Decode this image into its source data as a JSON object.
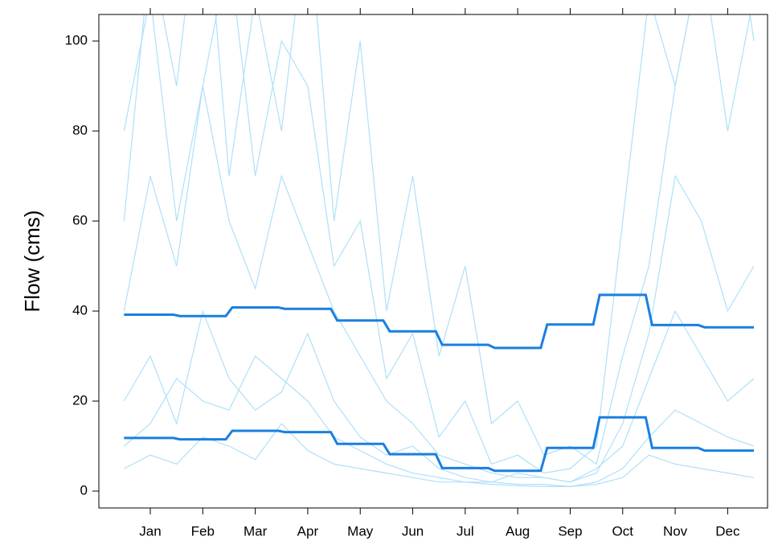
{
  "chart_data": {
    "type": "line",
    "y_label": "Flow (cms)",
    "categories": [
      "Jan",
      "Feb",
      "Mar",
      "Apr",
      "May",
      "Jun",
      "Jul",
      "Aug",
      "Sep",
      "Oct",
      "Nov",
      "Dec"
    ],
    "xlim": [
      -0.98,
      11.76
    ],
    "ylim": [
      -3.75,
      105.9
    ],
    "yticks": [
      0,
      20,
      40,
      60,
      80,
      100
    ],
    "x": [
      -0.5,
      0,
      0.5,
      1,
      1.5,
      2,
      2.5,
      3,
      3.5,
      4,
      4.5,
      5,
      5.5,
      6,
      6.5,
      7,
      7.5,
      8,
      8.5,
      9,
      9.5,
      10,
      10.5,
      11,
      11.5
    ],
    "traces": [
      {
        "color": "#aee0fa",
        "values": [
          60,
          120,
          90,
          140,
          70,
          110,
          80,
          130,
          60,
          100,
          40,
          70,
          30,
          50,
          15,
          20,
          8,
          10,
          6,
          30,
          50,
          90,
          120,
          140,
          100
        ]
      },
      {
        "color": "#aee0fa",
        "values": [
          20,
          30,
          15,
          40,
          25,
          18,
          22,
          35,
          20,
          12,
          8,
          10,
          5,
          3,
          2,
          4,
          3,
          2,
          5,
          10,
          25,
          40,
          30,
          20,
          25
        ]
      },
      {
        "color": "#aee0fa",
        "values": [
          5,
          8,
          6,
          12,
          10,
          7,
          15,
          9,
          6,
          5,
          4,
          3,
          2,
          2,
          1.5,
          1.2,
          1,
          1,
          1.5,
          3,
          8,
          6,
          5,
          4,
          3
        ]
      },
      {
        "color": "#aee0fa",
        "values": [
          40,
          70,
          50,
          90,
          60,
          45,
          70,
          55,
          40,
          30,
          20,
          15,
          8,
          6,
          4,
          3,
          3,
          2,
          4,
          15,
          35,
          70,
          60,
          40,
          50
        ]
      },
      {
        "color": "#aee0fa",
        "values": [
          10,
          15,
          25,
          20,
          18,
          30,
          25,
          20,
          12,
          9,
          6,
          4,
          3,
          2,
          2,
          1.5,
          1.5,
          1,
          2,
          5,
          12,
          18,
          15,
          12,
          10
        ]
      },
      {
        "color": "#aee0fa",
        "values": [
          80,
          110,
          60,
          90,
          120,
          70,
          100,
          90,
          50,
          60,
          25,
          35,
          12,
          20,
          6,
          8,
          4,
          5,
          10,
          60,
          110,
          90,
          120,
          80,
          110
        ]
      }
    ],
    "series": [
      {
        "color": "#1a7fe0",
        "values": [
          39.2,
          38.9,
          40.8,
          40.5,
          37.9,
          35.5,
          32.5,
          31.8,
          37,
          43.6,
          36.9,
          36.4
        ]
      },
      {
        "color": "#1a7fe0",
        "values": [
          11.8,
          11.5,
          13.4,
          13.1,
          10.5,
          8.2,
          5.1,
          4.5,
          9.6,
          16.4,
          9.6,
          9.0
        ]
      }
    ]
  }
}
